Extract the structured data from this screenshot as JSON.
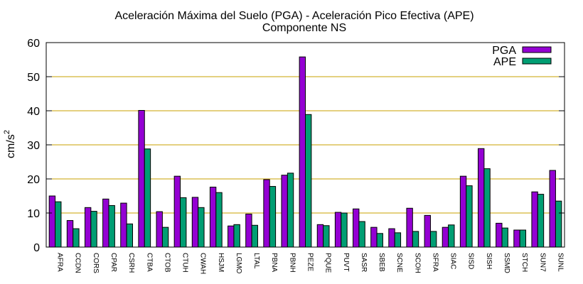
{
  "chart_data": {
    "type": "bar",
    "title": "Aceleración Máxima del Suelo (PGA) -  Aceleración Pico Efectiva (APE)",
    "subtitle": "Componente NS",
    "ylabel": "cm/s",
    "ylabel_superscript": "2",
    "xlabel": "",
    "ylim": [
      0,
      60
    ],
    "yticks": [
      0,
      10,
      20,
      30,
      40,
      50,
      60
    ],
    "grid": "horizontal",
    "legend_position": "top-right",
    "categories": [
      "AFRA",
      "CCDN",
      "CORS",
      "CPAR",
      "CSRH",
      "CTBA",
      "CTOB",
      "CTUH",
      "CWAH",
      "HSJM",
      "LGMO",
      "LTAL",
      "PBNA",
      "PBNH",
      "PEZE",
      "PQUE",
      "PUVT",
      "SASR",
      "SBEB",
      "SCNE",
      "SCOH",
      "SFRA",
      "SIAC",
      "SISD",
      "SISH",
      "SSMD",
      "STCH",
      "SUN7",
      "SUNL"
    ],
    "series": [
      {
        "name": "PGA",
        "color": "#9400D3",
        "values": [
          15.0,
          7.8,
          11.6,
          14.1,
          12.9,
          40.1,
          10.4,
          20.8,
          14.6,
          17.6,
          6.2,
          9.7,
          19.8,
          21.1,
          55.8,
          6.6,
          10.2,
          11.2,
          5.8,
          5.4,
          11.4,
          9.3,
          5.8,
          20.8,
          28.9,
          7.0,
          5.0,
          16.2,
          22.5
        ]
      },
      {
        "name": "APE",
        "color": "#009E73",
        "values": [
          13.3,
          5.4,
          10.5,
          12.2,
          6.8,
          28.8,
          5.8,
          14.5,
          11.6,
          16.0,
          6.6,
          6.4,
          17.8,
          21.7,
          38.9,
          6.3,
          10.0,
          7.5,
          4.0,
          4.2,
          4.6,
          4.6,
          6.5,
          18.0,
          23.0,
          5.6,
          5.0,
          15.5,
          13.5
        ]
      }
    ]
  }
}
